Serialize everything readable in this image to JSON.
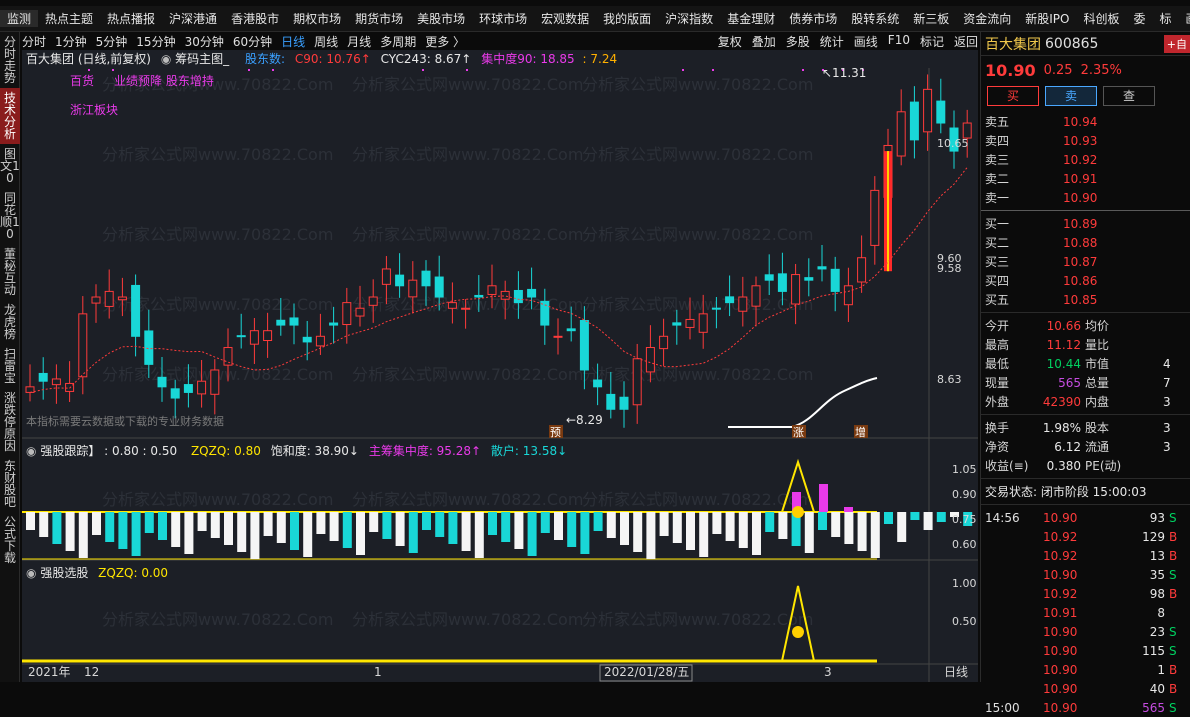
{
  "top_nav": [
    "监测",
    "热点主题",
    "热点播报",
    "沪深港通",
    "香港股市",
    "期权市场",
    "期货市场",
    "美股市场",
    "环球市场",
    "宏观数据",
    "我的版面",
    "沪深指数",
    "基金理财",
    "债券市场",
    "股转系统",
    "新三板",
    "资金流向",
    "新股IPO",
    "科创板",
    "委",
    "标",
    "画"
  ],
  "left_tabs": [
    "分时走势",
    "技术分析",
    "图文10",
    "同花顺10",
    "董秘互动",
    "龙虎榜",
    "扫雷宝",
    "涨跌停原因",
    "东财股吧",
    "公式下载"
  ],
  "toolbar": {
    "periods": [
      "分时",
      "1分钟",
      "5分钟",
      "15分钟",
      "30分钟",
      "60分钟",
      "日线",
      "周线",
      "月线",
      "多周期",
      "更多 〉"
    ],
    "active_period": "日线",
    "tools": [
      "复权",
      "叠加",
      "多股",
      "统计",
      "画线",
      "F10",
      "标记",
      "返回"
    ]
  },
  "main_info": {
    "title": "百大集团 (日线,前复权)",
    "chips": "筹码主图_",
    "shareholders": "股东数:",
    "c90": "C90: 10.76↑",
    "cyc": "CYC243: 8.67↑",
    "conc": "集中度90: 18.85",
    "extra": ": 7.24",
    "tag_retail": "百货",
    "tag_perf": "业绩预降 股东增持",
    "tag_sector": "浙江板块",
    "note": "本指标需要云数据或下载的专业财务数据",
    "price_labels": [
      "10.65",
      "9.60",
      "9.58",
      "8.63"
    ],
    "high_mark": "11.31",
    "low_mark": "8.29",
    "marker_yu": "预",
    "marker_zhang": "涨",
    "marker_zeng": "增",
    "watermark": "分析家公式网www.70822.Com"
  },
  "ind1": {
    "title": "强股跟踪】",
    "v1": ": 0.80 : 0.50",
    "zq": "ZQZQ: 0.80",
    "bh": "饱和度: 38.90↓",
    "zl": "主筹集中度: 95.28↑",
    "sh": "散户: 13.58↓",
    "ticks": [
      "1.05",
      "0.90",
      "0.75",
      "0.60"
    ]
  },
  "ind2": {
    "title": "强股选股",
    "zq": "ZQZQ: 0.00",
    "ticks": [
      "1.00",
      "0.50"
    ]
  },
  "xaxis": {
    "y2021": "2021年",
    "m12": "12",
    "m1": "1",
    "date": "2022/01/28/五",
    "m3": "3",
    "period": "日线"
  },
  "quote": {
    "name": "百大集团",
    "code": "600865",
    "add": "+自",
    "price": "10.90",
    "change": "0.25",
    "pct": "2.35%",
    "btn_buy": "买",
    "btn_sell": "卖",
    "btn_check": "查",
    "asks": [
      [
        "卖五",
        "10.94"
      ],
      [
        "卖四",
        "10.93"
      ],
      [
        "卖三",
        "10.92"
      ],
      [
        "卖二",
        "10.91"
      ],
      [
        "卖一",
        "10.90"
      ]
    ],
    "bids": [
      [
        "买一",
        "10.89"
      ],
      [
        "买二",
        "10.88"
      ],
      [
        "买三",
        "10.87"
      ],
      [
        "买四",
        "10.86"
      ],
      [
        "买五",
        "10.85"
      ]
    ],
    "stats": [
      [
        "今开",
        "10.66",
        "均价",
        ""
      ],
      [
        "最高",
        "11.12",
        "量比",
        ""
      ],
      [
        "最低",
        "10.44",
        "市值",
        "4"
      ],
      [
        "现量",
        "565",
        "总量",
        "7"
      ],
      [
        "外盘",
        "42390",
        "内盘",
        "3"
      ]
    ],
    "stats2": [
      [
        "换手",
        "1.98%",
        "股本",
        "3"
      ],
      [
        "净资",
        "6.12",
        "流通",
        "3"
      ],
      [
        "收益(≡)",
        "0.380",
        "PE(动)",
        ""
      ]
    ],
    "status": "交易状态: 闭市阶段 15:00:03",
    "ticks": [
      [
        "14:56",
        "10.90",
        "93",
        "S"
      ],
      [
        "",
        "10.92",
        "129",
        "B"
      ],
      [
        "",
        "10.92",
        "13",
        "B"
      ],
      [
        "",
        "10.90",
        "35",
        "S"
      ],
      [
        "",
        "10.92",
        "98",
        "B"
      ],
      [
        "",
        "10.91",
        "8",
        ""
      ],
      [
        "",
        "10.90",
        "23",
        "S"
      ],
      [
        "",
        "10.90",
        "115",
        "S"
      ],
      [
        "",
        "10.90",
        "1",
        "B"
      ],
      [
        "",
        "10.90",
        "40",
        "B"
      ],
      [
        "15:00",
        "10.90",
        "565",
        "S"
      ]
    ]
  },
  "colors": {
    "up": "#ff3b3b",
    "down": "#19d7d7",
    "ma": "#ff3b3b",
    "yellow": "#ffe600",
    "magenta": "#e93ae9"
  }
}
